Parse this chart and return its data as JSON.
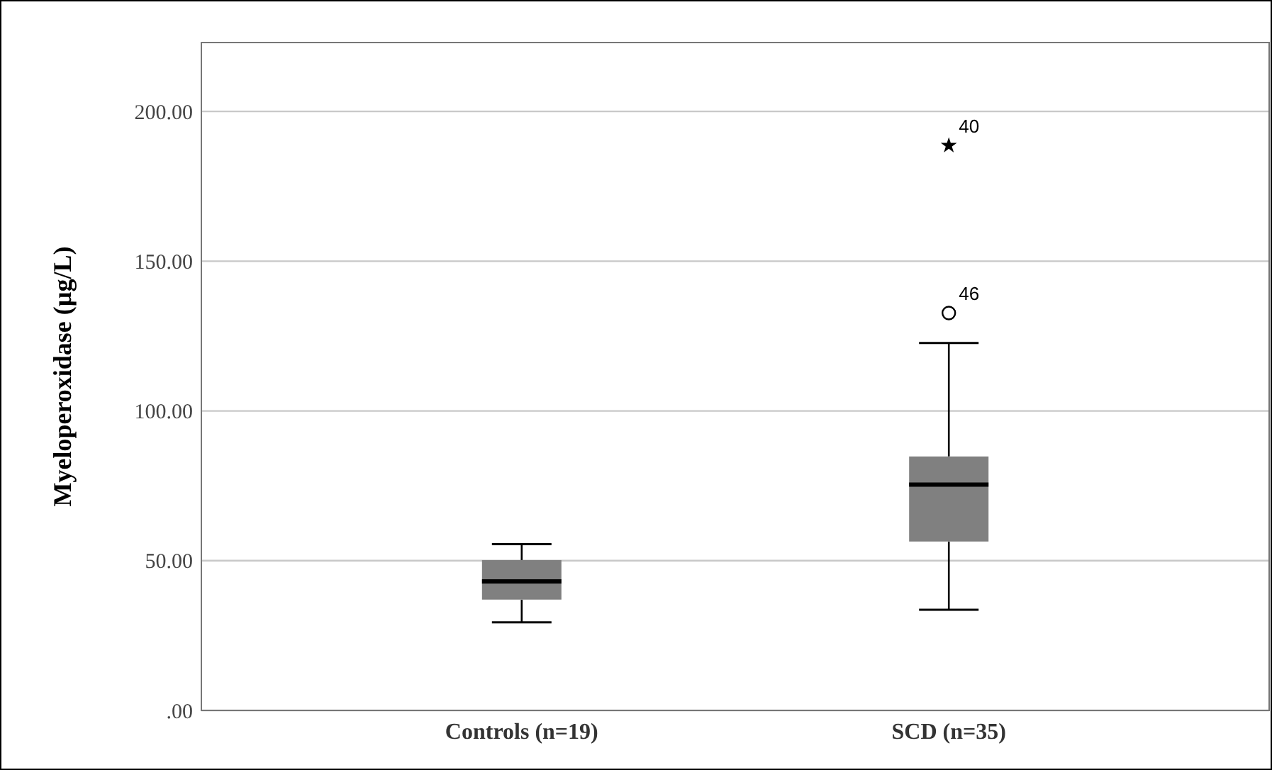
{
  "chart_data": {
    "type": "box",
    "ylabel": "Myeloperoxidase (µg/L)",
    "categories": [
      "Controls (n=19)",
      "SCD (n=35)"
    ],
    "boxes": [
      {
        "low": 29.4,
        "q1": 37,
        "median": 43.1,
        "q3": 50.2,
        "high": 55.5
      },
      {
        "low": 33.6,
        "q1": 56.4,
        "median": 75.4,
        "q3": 84.8,
        "high": 122.7
      }
    ],
    "color": "#808080",
    "series": [
      {
        "type": "scatter",
        "marker": "star",
        "x": [
          "SCD (n=35)"
        ],
        "values": [
          188.6
        ],
        "color": "#000000"
      },
      {
        "type": "scatter",
        "marker": "circle",
        "x": [
          "SCD (n=35)"
        ],
        "values": [
          132.7
        ],
        "color": "#000000"
      }
    ],
    "annotations": [
      {
        "text": "40",
        "x": "SCD (n=35)",
        "y": 188.6
      },
      {
        "text": "46",
        "x": "SCD (n=35)",
        "y": 132.7
      }
    ],
    "ylim": [
      0,
      223
    ],
    "yticks": [
      {
        "value": 0,
        "label": ".00"
      },
      {
        "value": 50,
        "label": "50.00"
      },
      {
        "value": 100,
        "label": "100.00"
      },
      {
        "value": 150,
        "label": "150.00"
      },
      {
        "value": 200,
        "label": "200.00"
      }
    ],
    "grid": "y"
  }
}
